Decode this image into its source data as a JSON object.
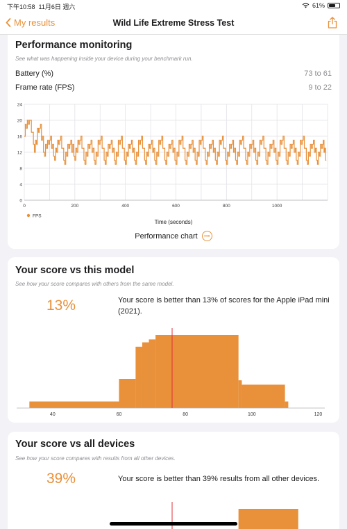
{
  "status_bar": {
    "time": "下午10:58",
    "date": "11月6日 週六",
    "battery": "61%",
    "battery_level": 0.61
  },
  "nav": {
    "back_label": "My results",
    "title": "Wild Life Extreme Stress Test"
  },
  "performance": {
    "title": "Performance monitoring",
    "subtitle": "See what was happening inside your device during your benchmark run.",
    "metrics": [
      {
        "label": "Battery (%)",
        "value": "73 to 61"
      },
      {
        "label": "Frame rate (FPS)",
        "value": "9 to 22"
      }
    ],
    "chart_label": "Performance chart"
  },
  "this_model": {
    "title": "Your score vs this model",
    "subtitle": "See how your score compares with others from the same model.",
    "percent": "13%",
    "text": "Your score is better than 13% of scores for the Apple iPad mini (2021)."
  },
  "all_devices": {
    "title": "Your score vs all devices",
    "subtitle": "See how your score compares with results from all other devices.",
    "percent": "39%",
    "text": "Your score is better than 39% results from all other devices."
  },
  "colors": {
    "accent": "#e8903a",
    "marker": "#e0303a"
  },
  "chart_data": [
    {
      "type": "line",
      "xlabel": "Time (seconds)",
      "ylabel": "",
      "x_ticks": [
        0,
        200,
        400,
        600,
        800,
        1000
      ],
      "y_ticks": [
        0,
        4,
        8,
        12,
        16,
        20,
        24
      ],
      "xlim": [
        0,
        1200
      ],
      "ylim": [
        0,
        24
      ],
      "legend": "bottom-left",
      "series": [
        {
          "name": "FPS",
          "x": [
            0,
            20,
            40,
            60,
            80,
            100,
            120,
            140,
            160,
            180,
            200,
            220,
            240,
            260,
            280,
            300,
            320,
            340,
            360,
            380,
            400,
            420,
            440,
            460,
            480,
            500,
            520,
            540,
            560,
            580,
            600,
            620,
            640,
            660,
            680,
            700,
            720,
            740,
            760,
            780,
            800,
            820,
            840,
            860,
            880,
            900,
            920,
            940,
            960,
            980,
            1000,
            1020,
            1040,
            1060,
            1080,
            1100,
            1120,
            1140,
            1160,
            1180,
            1195
          ],
          "y": [
            17,
            21,
            13,
            19,
            12,
            16,
            11,
            16,
            10,
            15,
            11,
            16,
            10,
            15,
            10,
            16,
            10,
            15,
            10,
            16,
            10,
            15,
            10,
            16,
            10,
            15,
            10,
            16,
            10,
            15,
            10,
            16,
            10,
            15,
            10,
            16,
            10,
            15,
            10,
            16,
            10,
            15,
            10,
            16,
            10,
            15,
            10,
            16,
            10,
            15,
            10,
            16,
            10,
            15,
            10,
            16,
            10,
            15,
            10,
            15,
            10
          ]
        }
      ]
    },
    {
      "type": "bar",
      "xlabel": "",
      "ylabel": "",
      "x_ticks": [
        40,
        60,
        80,
        100,
        120
      ],
      "xlim": [
        30,
        122
      ],
      "ylim": [
        0,
        1
      ],
      "bins": [
        {
          "from": 33,
          "to": 60,
          "value": 0.09
        },
        {
          "from": 60,
          "to": 65,
          "value": 0.4
        },
        {
          "from": 65,
          "to": 67,
          "value": 0.84
        },
        {
          "from": 67,
          "to": 69,
          "value": 0.9
        },
        {
          "from": 69,
          "to": 71,
          "value": 0.94
        },
        {
          "from": 71,
          "to": 96,
          "value": 1.0
        },
        {
          "from": 96,
          "to": 97,
          "value": 0.38
        },
        {
          "from": 97,
          "to": 110,
          "value": 0.32
        },
        {
          "from": 110,
          "to": 111,
          "value": 0.09
        }
      ],
      "marker": 76
    },
    {
      "type": "bar",
      "xlabel": "",
      "ylabel": "",
      "xlim": [
        30,
        122
      ],
      "ylim": [
        0,
        1
      ],
      "bins": [
        {
          "from": 96,
          "to": 114,
          "value": 1.0
        }
      ],
      "marker": 76
    }
  ]
}
